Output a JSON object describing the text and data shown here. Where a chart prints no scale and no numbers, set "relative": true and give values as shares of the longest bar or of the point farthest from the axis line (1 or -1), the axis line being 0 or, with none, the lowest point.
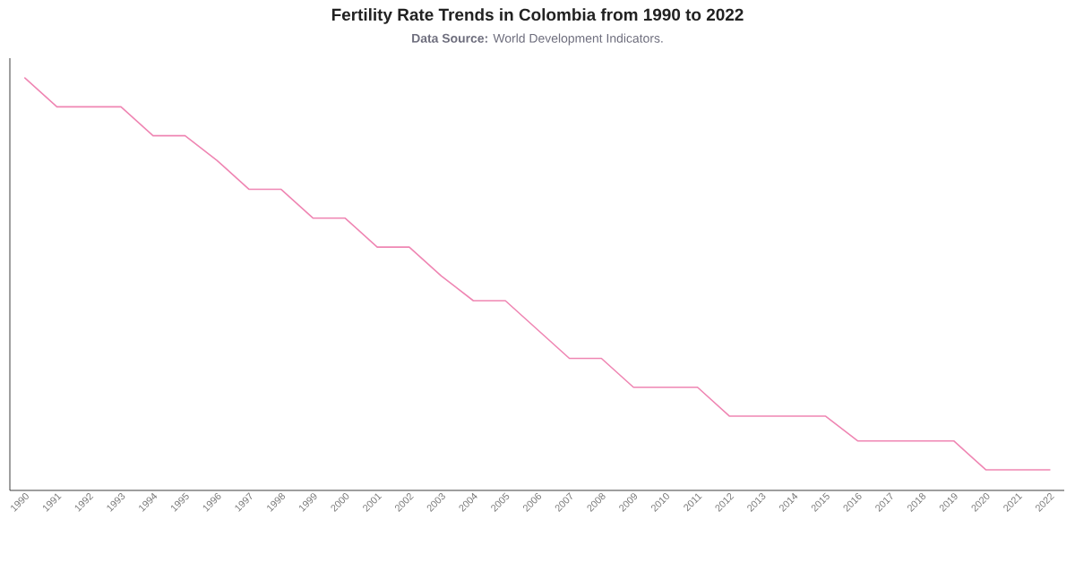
{
  "chart_data": {
    "type": "line",
    "title": "Fertility Rate Trends in Colombia from 1990 to 2022",
    "subtitle": "**Data Source:** World Development Indicators.",
    "categories": [
      "1990",
      "1991",
      "1992",
      "1993",
      "1994",
      "1995",
      "1996",
      "1997",
      "1998",
      "1999",
      "2000",
      "2001",
      "2002",
      "2003",
      "2004",
      "2005",
      "2006",
      "2007",
      "2008",
      "2009",
      "2010",
      "2011",
      "2012",
      "2013",
      "2014",
      "2015",
      "2016",
      "2017",
      "2018",
      "2019",
      "2020",
      "2021",
      "2022"
    ],
    "relative": true,
    "color": "#ef86b3",
    "values": [
      1,
      0.93,
      0.93,
      0.93,
      0.86,
      0.86,
      0.8,
      0.73,
      0.73,
      0.66,
      0.66,
      0.59,
      0.59,
      0.52,
      0.46,
      0.46,
      0.39,
      0.32,
      0.32,
      0.25,
      0.25,
      0.25,
      0.18,
      0.18,
      0.18,
      0.18,
      0.12,
      0.12,
      0.12,
      0.12,
      0.05,
      0.05,
      0.05
    ]
  }
}
